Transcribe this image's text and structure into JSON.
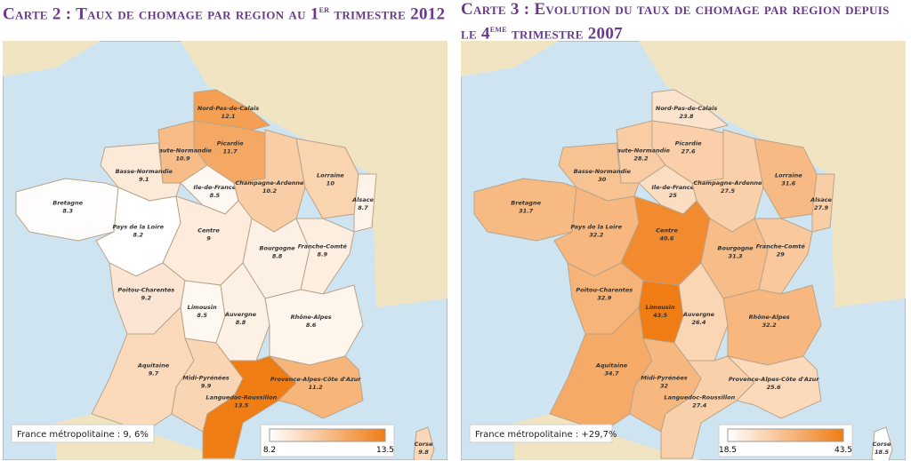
{
  "maps": [
    {
      "title": {
        "main": "Carte 2 : Taux de chomage par region au 1",
        "sup": "er",
        "rest": " trimestre 2012"
      },
      "note": "France métropolitaine : 9, 6%",
      "legend": {
        "min": 8.2,
        "max": 13.5,
        "colors": [
          "#ffffff",
          "#f07c14"
        ]
      },
      "regions": [
        {
          "name": "Nord-Pas-de-Calais",
          "value": 12.1
        },
        {
          "name": "Picardie",
          "value": 11.7
        },
        {
          "name": "Haute-Normandie",
          "value": 10.9
        },
        {
          "name": "Basse-Normandie",
          "value": 9.1
        },
        {
          "name": "Ile-de-France",
          "value": 8.5
        },
        {
          "name": "Champagne-Ardenne",
          "value": 10.2
        },
        {
          "name": "Lorraine",
          "value": 10
        },
        {
          "name": "Alsace",
          "value": 8.7
        },
        {
          "name": "Bretagne",
          "value": 8.3
        },
        {
          "name": "Pays de la Loire",
          "value": 8.2
        },
        {
          "name": "Centre",
          "value": 9
        },
        {
          "name": "Bourgogne",
          "value": 8.8
        },
        {
          "name": "Franche-Comté",
          "value": 8.9
        },
        {
          "name": "Poitou-Charentes",
          "value": 9.2
        },
        {
          "name": "Limousin",
          "value": 8.5
        },
        {
          "name": "Auvergne",
          "value": 8.8
        },
        {
          "name": "Rhône-Alpes",
          "value": 8.6
        },
        {
          "name": "Aquitaine",
          "value": 9.7
        },
        {
          "name": "Midi-Pyrénées",
          "value": 9.9
        },
        {
          "name": "Languedoc-Roussillon",
          "value": 13.5
        },
        {
          "name": "Provence-Alpes-Côte d'Azur",
          "value": 11.2
        },
        {
          "name": "Corse",
          "value": 9.8
        }
      ]
    },
    {
      "title": {
        "main": "Carte 3 : Evolution du taux de chomage par region depuis le 4",
        "sup": "eme",
        "rest": " trimestre 2007"
      },
      "note": "France métropolitaine : +29,7%",
      "legend": {
        "min": 18.5,
        "max": 43.5,
        "colors": [
          "#ffffff",
          "#f07c14"
        ]
      },
      "regions": [
        {
          "name": "Nord-Pas-de-Calais",
          "value": 23.8
        },
        {
          "name": "Picardie",
          "value": 27.6
        },
        {
          "name": "Haute-Normandie",
          "value": 28.2
        },
        {
          "name": "Basse-Normandie",
          "value": 30
        },
        {
          "name": "Ile-de-France",
          "value": 25
        },
        {
          "name": "Champagne-Ardenne",
          "value": 27.5
        },
        {
          "name": "Lorraine",
          "value": 31.6
        },
        {
          "name": "Alsace",
          "value": 27.9
        },
        {
          "name": "Bretagne",
          "value": 31.7
        },
        {
          "name": "Pays de la Loire",
          "value": 32.2
        },
        {
          "name": "Centre",
          "value": 40.6
        },
        {
          "name": "Bourgogne",
          "value": 31.3
        },
        {
          "name": "Franche-Comté",
          "value": 29
        },
        {
          "name": "Poitou-Charentes",
          "value": 32.9
        },
        {
          "name": "Limousin",
          "value": 43.5
        },
        {
          "name": "Auvergne",
          "value": 26.4
        },
        {
          "name": "Rhône-Alpes",
          "value": 32.2
        },
        {
          "name": "Aquitaine",
          "value": 34.7
        },
        {
          "name": "Midi-Pyrénées",
          "value": 32
        },
        {
          "name": "Languedoc-Roussillon",
          "value": 27.4
        },
        {
          "name": "Provence-Alpes-Côte d'Azur",
          "value": 25.6
        },
        {
          "name": "Corse",
          "value": 18.5
        }
      ]
    }
  ]
}
